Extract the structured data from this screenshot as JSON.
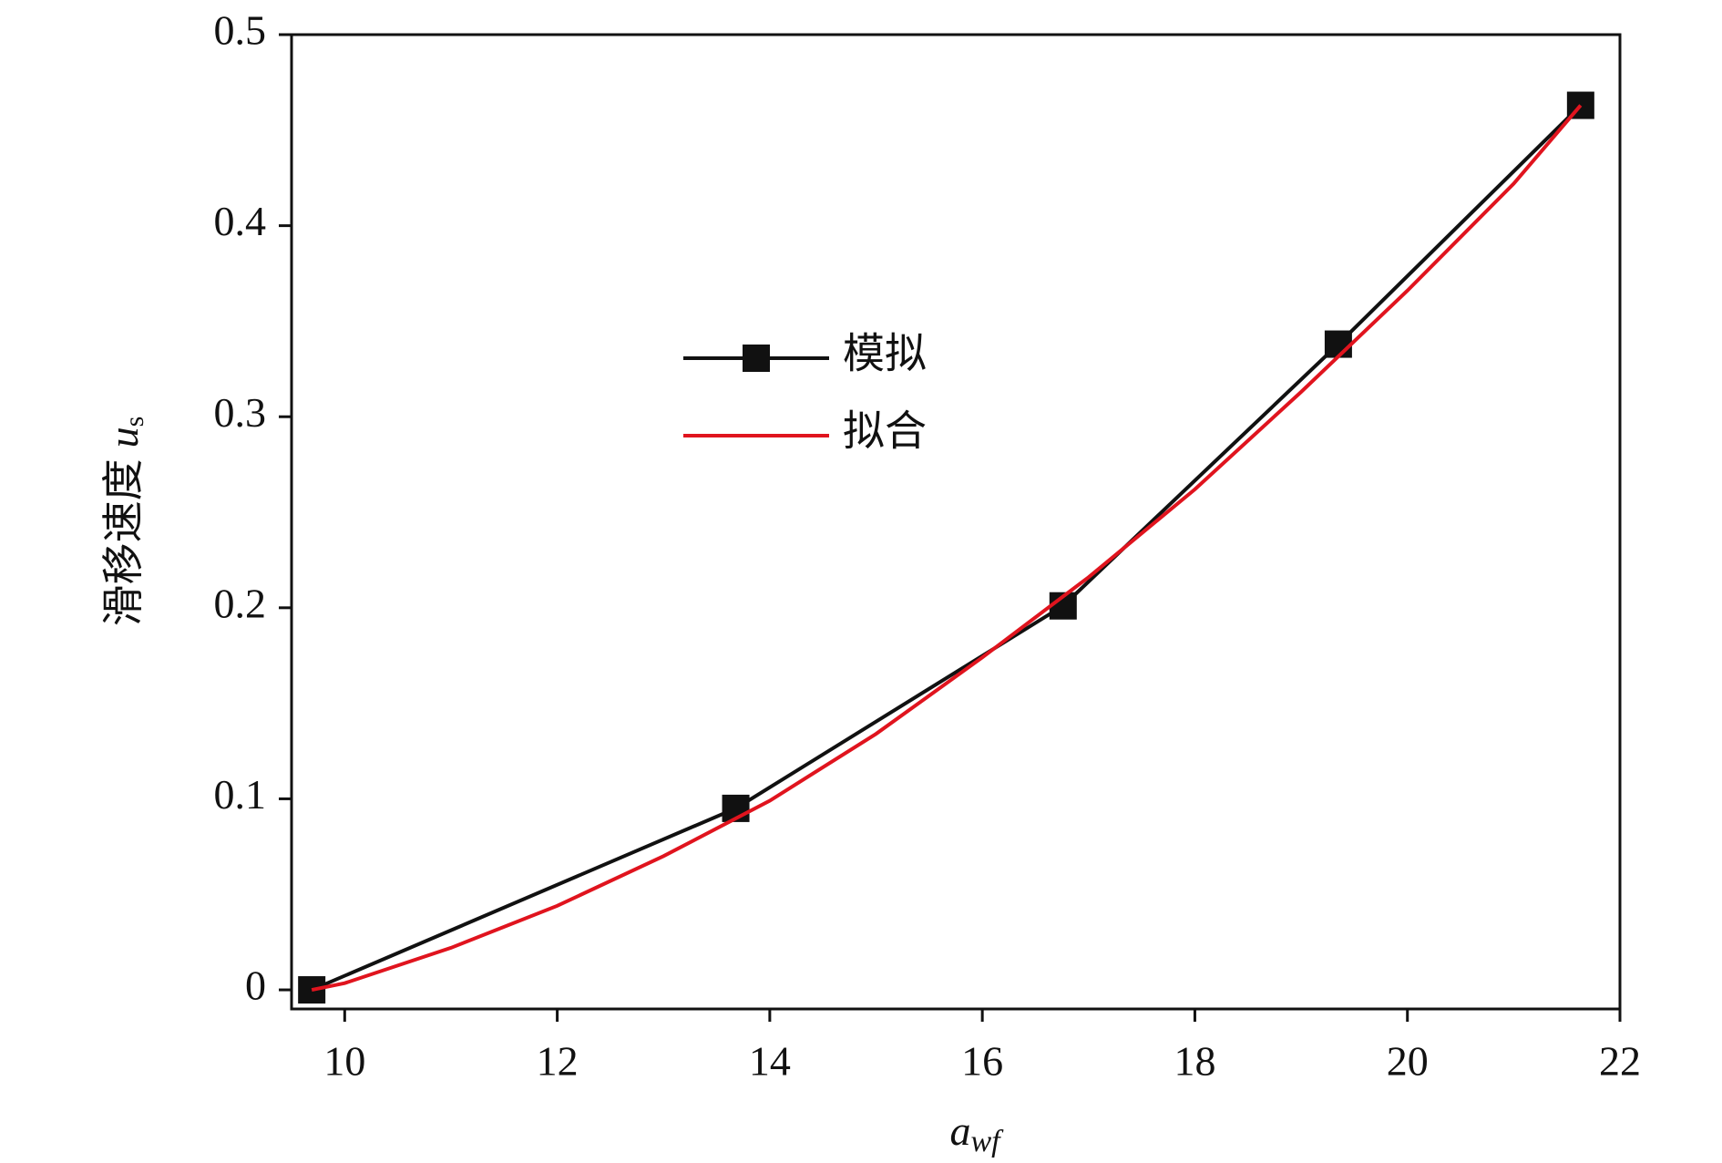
{
  "chart_data": {
    "type": "line",
    "x_label": [
      "a",
      "wf"
    ],
    "y_label": [
      "滑移速度",
      "u",
      "s"
    ],
    "xlim": [
      9.5,
      22
    ],
    "xticks": [
      10,
      12,
      14,
      16,
      18,
      20,
      22
    ],
    "ylim": [
      -0.01,
      0.5
    ],
    "yticks": [
      0,
      0.1,
      0.2,
      0.3,
      0.4,
      0.5
    ],
    "legend": "center",
    "series": [
      {
        "name": "模拟",
        "color": "#111111",
        "marker": "square",
        "x": [
          9.69,
          13.68,
          16.76,
          19.35,
          21.63
        ],
        "values": [
          0,
          0.095,
          0.201,
          0.338,
          0.463
        ]
      },
      {
        "name": "拟合",
        "color": "#e0141e",
        "marker": "none",
        "x": [
          9.69,
          10,
          11,
          12,
          13,
          14,
          15,
          16,
          17,
          18,
          19,
          20,
          21,
          21.63
        ],
        "values": [
          0,
          0.0035,
          0.022,
          0.044,
          0.07,
          0.099,
          0.134,
          0.174,
          0.216,
          0.262,
          0.313,
          0.366,
          0.422,
          0.463
        ]
      }
    ]
  }
}
